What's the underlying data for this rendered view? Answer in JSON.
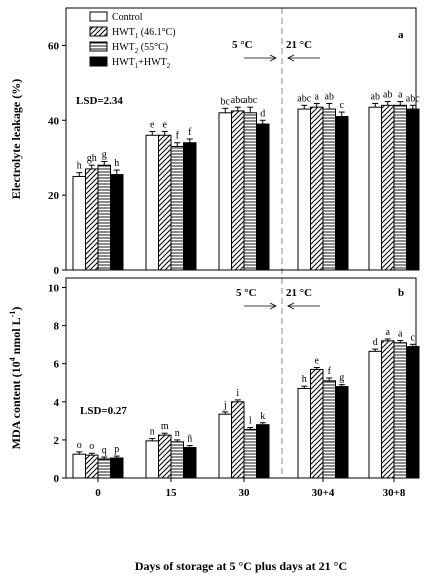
{
  "chart_data": [
    {
      "type": "bar",
      "panel_label": "a",
      "ylabel": "Electrolyte leakage (%)",
      "ylim": [
        0,
        70
      ],
      "yticks": [
        0,
        20,
        40,
        60
      ],
      "categories": [
        "0",
        "15",
        "30",
        "30+4",
        "30+8"
      ],
      "series": [
        {
          "name": "Control",
          "values": [
            25.0,
            36.0,
            42.0,
            43.0,
            43.5
          ],
          "errors": [
            1.0,
            1.0,
            1.2,
            1.0,
            1.0
          ],
          "letters": [
            "h",
            "e",
            "bc",
            "abc",
            "ab"
          ]
        },
        {
          "name": "HWT1 (46.1°C)",
          "values": [
            27.0,
            36.0,
            42.5,
            43.5,
            44.0
          ],
          "errors": [
            1.0,
            1.0,
            1.0,
            1.0,
            1.0
          ],
          "letters": [
            "gh",
            "e",
            "abc",
            "a",
            "ab"
          ]
        },
        {
          "name": "HWT2 (55°C)",
          "values": [
            28.0,
            33.0,
            42.0,
            43.0,
            44.0
          ],
          "errors": [
            1.0,
            1.0,
            1.5,
            1.5,
            1.0
          ],
          "letters": [
            "g",
            "f",
            "abc",
            "ab",
            "a"
          ]
        },
        {
          "name": "HWT1+HWT2",
          "values": [
            25.5,
            34.0,
            39.0,
            41.0,
            43.0
          ],
          "errors": [
            1.2,
            1.0,
            1.0,
            1.2,
            1.0
          ],
          "letters": [
            "h",
            "f",
            "d",
            "c",
            "abc"
          ]
        }
      ],
      "lsd": "LSD=2.34",
      "temp_left": "5 °C",
      "temp_right": "21 °C",
      "legend_position": "top-left"
    },
    {
      "type": "bar",
      "panel_label": "b",
      "ylabel": "MDA content (10 4 nmol L -1 )",
      "ylim": [
        0,
        10.5
      ],
      "yticks": [
        0,
        2,
        4,
        6,
        8,
        10
      ],
      "categories": [
        "0",
        "15",
        "30",
        "30+4",
        "30+8"
      ],
      "series": [
        {
          "name": "Control",
          "values": [
            1.25,
            1.95,
            3.35,
            4.7,
            6.65
          ],
          "errors": [
            0.12,
            0.12,
            0.12,
            0.12,
            0.12
          ],
          "letters": [
            "o",
            "n",
            "j",
            "h",
            "d"
          ]
        },
        {
          "name": "HWT1 (46.1°C)",
          "values": [
            1.2,
            2.25,
            4.0,
            5.7,
            7.2
          ],
          "errors": [
            0.1,
            0.1,
            0.1,
            0.1,
            0.1
          ],
          "letters": [
            "o",
            "m",
            "i",
            "e",
            "a"
          ]
        },
        {
          "name": "HWT2 (55°C)",
          "values": [
            1.0,
            1.9,
            2.55,
            5.1,
            7.1
          ],
          "errors": [
            0.1,
            0.1,
            0.1,
            0.15,
            0.12
          ],
          "letters": [
            "q",
            "n",
            "l",
            "f",
            "a"
          ]
        },
        {
          "name": "HWT1+HWT2",
          "values": [
            1.05,
            1.6,
            2.8,
            4.8,
            6.9
          ],
          "errors": [
            0.1,
            0.1,
            0.1,
            0.1,
            0.12
          ],
          "letters": [
            "p",
            "ñ",
            "k",
            "g",
            "c"
          ]
        }
      ],
      "lsd": "LSD=0.27",
      "temp_left": "5 °C",
      "temp_right": "21 °C",
      "xlabel": "Days of storage at 5 °C plus days at 21 °C"
    }
  ],
  "legend": {
    "control": "Control",
    "hwt1": "HWT",
    "hwt1_sub": "1",
    "hwt1_detail": " (46.1°C)",
    "hwt2": "HWT",
    "hwt2_sub": "2",
    "hwt2_detail": " (55°C)",
    "combo_a": "HWT",
    "combo_a_sub": "1",
    "combo_plus": "+HWT",
    "combo_b_sub": "2"
  },
  "ylabel_b_parts": {
    "pre": "MDA content (10",
    "sup1": "4",
    "mid": " nmol L",
    "sup2": "-1",
    "post": ")"
  }
}
